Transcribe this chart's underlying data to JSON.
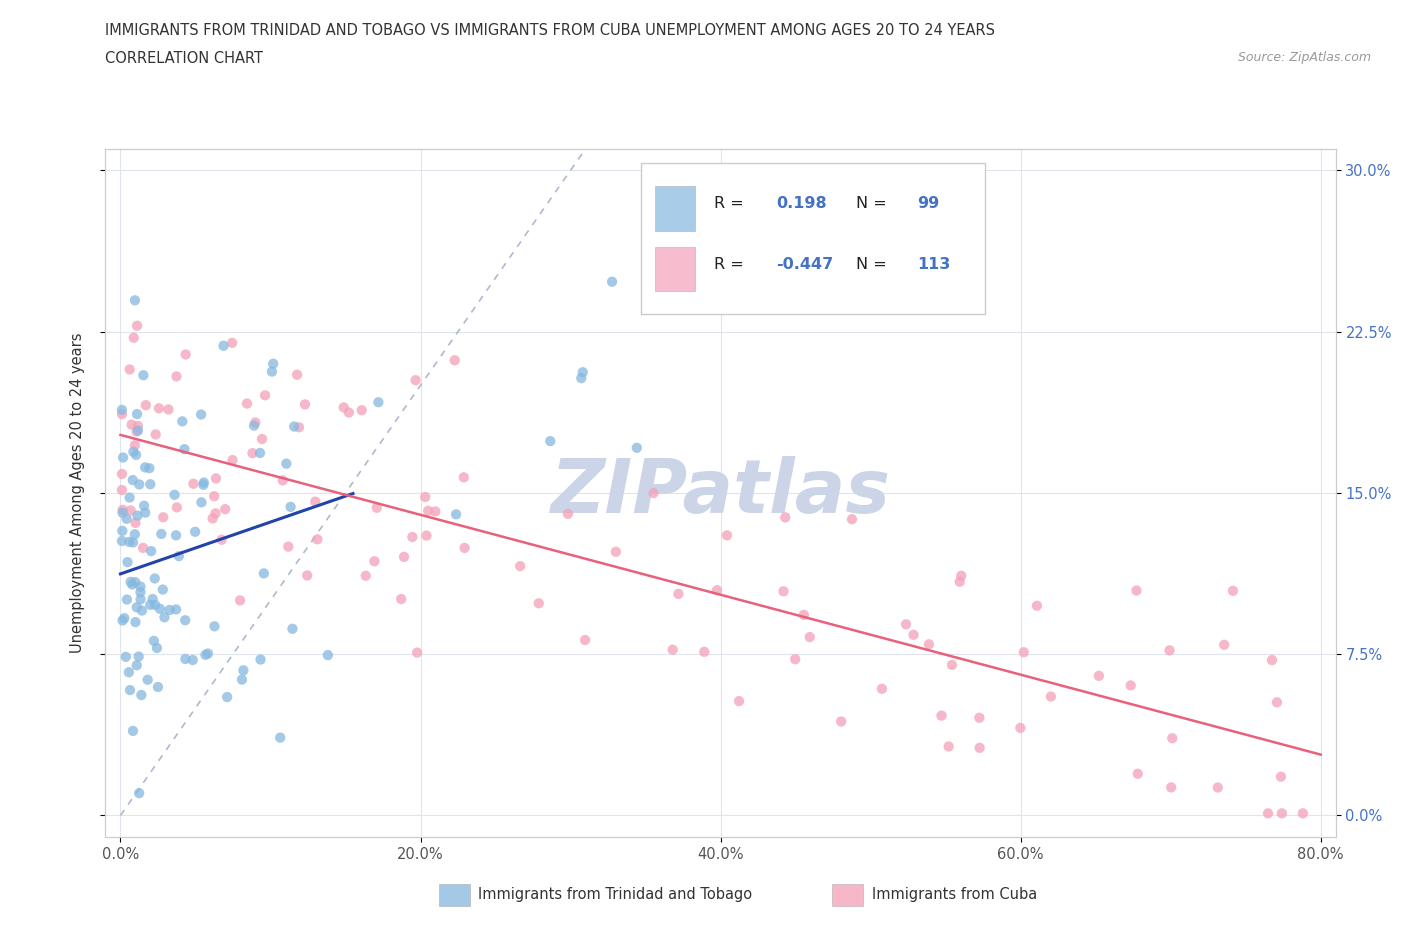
{
  "title_line1": "IMMIGRANTS FROM TRINIDAD AND TOBAGO VS IMMIGRANTS FROM CUBA UNEMPLOYMENT AMONG AGES 20 TO 24 YEARS",
  "title_line2": "CORRELATION CHART",
  "source_text": "Source: ZipAtlas.com",
  "ylabel": "Unemployment Among Ages 20 to 24 years",
  "trinidad_color": "#85b8e0",
  "cuba_color": "#f4a0b8",
  "trinidad_line_color": "#2244aa",
  "cuba_line_color": "#e8607a",
  "diagonal_color": "#b0b8cc",
  "watermark_color": "#ccd4e8",
  "legend_box_color": "#f0f4fa",
  "right_axis_color": "#4472c4",
  "grid_color": "#e0e4ec"
}
